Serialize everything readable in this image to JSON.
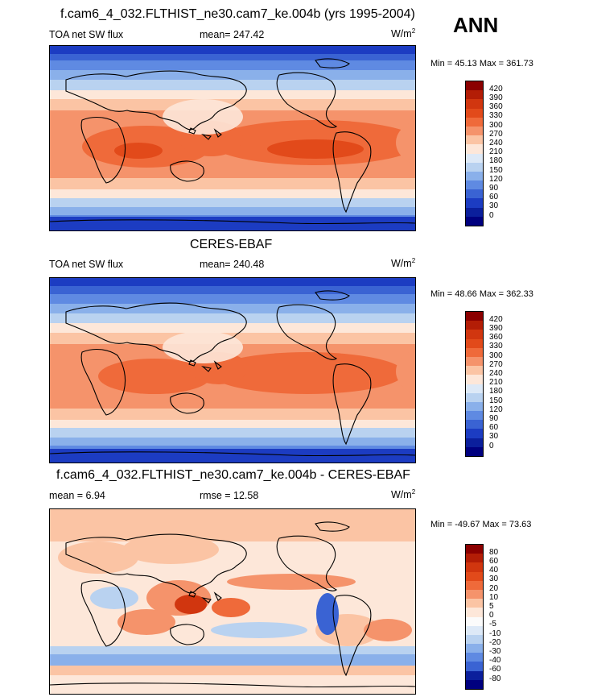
{
  "season": "ANN",
  "panels": [
    {
      "title": "f.cam6_4_032.FLTHIST_ne30.cam7_ke.004b (yrs 1995-2004)",
      "left_label": "TOA net SW flux",
      "center_label": "mean= 247.42",
      "unit": "W/m",
      "unit_exp": "2",
      "minmax": "Min =  45.13 Max = 361.73",
      "cbar_labels": [
        "420",
        "390",
        "360",
        "330",
        "300",
        "270",
        "240",
        "210",
        "180",
        "150",
        "120",
        "90",
        "60",
        "30",
        "0"
      ],
      "cbar_colors": [
        "#8b0000",
        "#b31d06",
        "#d1360f",
        "#e24a1a",
        "#ef6a3a",
        "#f5936b",
        "#fbc4a4",
        "#fde7d9",
        "#dde9f7",
        "#b9d2f0",
        "#8ab0ea",
        "#5f8ae2",
        "#3a63d3",
        "#1c3cc2",
        "#0b1f9c",
        "#00007f"
      ]
    },
    {
      "title": "CERES-EBAF",
      "left_label": "TOA net SW flux",
      "center_label": "mean= 240.48",
      "unit": "W/m",
      "unit_exp": "2",
      "minmax": "Min =  48.66 Max = 362.33",
      "cbar_labels": [
        "420",
        "390",
        "360",
        "330",
        "300",
        "270",
        "240",
        "210",
        "180",
        "150",
        "120",
        "90",
        "60",
        "30",
        "0"
      ],
      "cbar_colors": [
        "#8b0000",
        "#b31d06",
        "#d1360f",
        "#e24a1a",
        "#ef6a3a",
        "#f5936b",
        "#fbc4a4",
        "#fde7d9",
        "#dde9f7",
        "#b9d2f0",
        "#8ab0ea",
        "#5f8ae2",
        "#3a63d3",
        "#1c3cc2",
        "#0b1f9c",
        "#00007f"
      ]
    },
    {
      "title": "f.cam6_4_032.FLTHIST_ne30.cam7_ke.004b - CERES-EBAF",
      "left_label": "mean =   6.94",
      "center_label": "rmse =  12.58",
      "unit": "W/m",
      "unit_exp": "2",
      "minmax": "Min = -49.67 Max =  73.63",
      "cbar_labels": [
        "80",
        "60",
        "40",
        "30",
        "20",
        "10",
        "5",
        "0",
        "-5",
        "-10",
        "-20",
        "-30",
        "-40",
        "-60",
        "-80"
      ],
      "cbar_colors": [
        "#8b0000",
        "#b31d06",
        "#d1360f",
        "#e24a1a",
        "#ef6a3a",
        "#f5936b",
        "#fbc4a4",
        "#fde7d9",
        "#fbfbfb",
        "#dde9f7",
        "#b9d2f0",
        "#8ab0ea",
        "#5f8ae2",
        "#3a63d3",
        "#0b1f9c",
        "#00007f"
      ]
    }
  ],
  "chart_data": [
    {
      "type": "heatmap",
      "title": "f.cam6_4_032.FLTHIST_ne30.cam7_ke.004b (yrs 1995-2004)",
      "variable": "TOA net SW flux",
      "mean": 247.42,
      "min": 45.13,
      "max": 361.73,
      "levels": [
        0,
        30,
        60,
        90,
        120,
        150,
        180,
        210,
        240,
        270,
        300,
        330,
        360,
        390,
        420
      ]
    },
    {
      "type": "heatmap",
      "title": "CERES-EBAF",
      "variable": "TOA net SW flux",
      "mean": 240.48,
      "min": 48.66,
      "max": 362.33,
      "levels": [
        0,
        30,
        60,
        90,
        120,
        150,
        180,
        210,
        240,
        270,
        300,
        330,
        360,
        390,
        420
      ]
    },
    {
      "type": "heatmap",
      "title": "f.cam6_4_032.FLTHIST_ne30.cam7_ke.004b - CERES-EBAF",
      "mean": 6.94,
      "rmse": 12.58,
      "min": -49.67,
      "max": 73.63,
      "levels": [
        -80,
        -60,
        -40,
        -30,
        -20,
        -10,
        -5,
        0,
        5,
        10,
        20,
        30,
        40,
        60,
        80
      ]
    }
  ]
}
